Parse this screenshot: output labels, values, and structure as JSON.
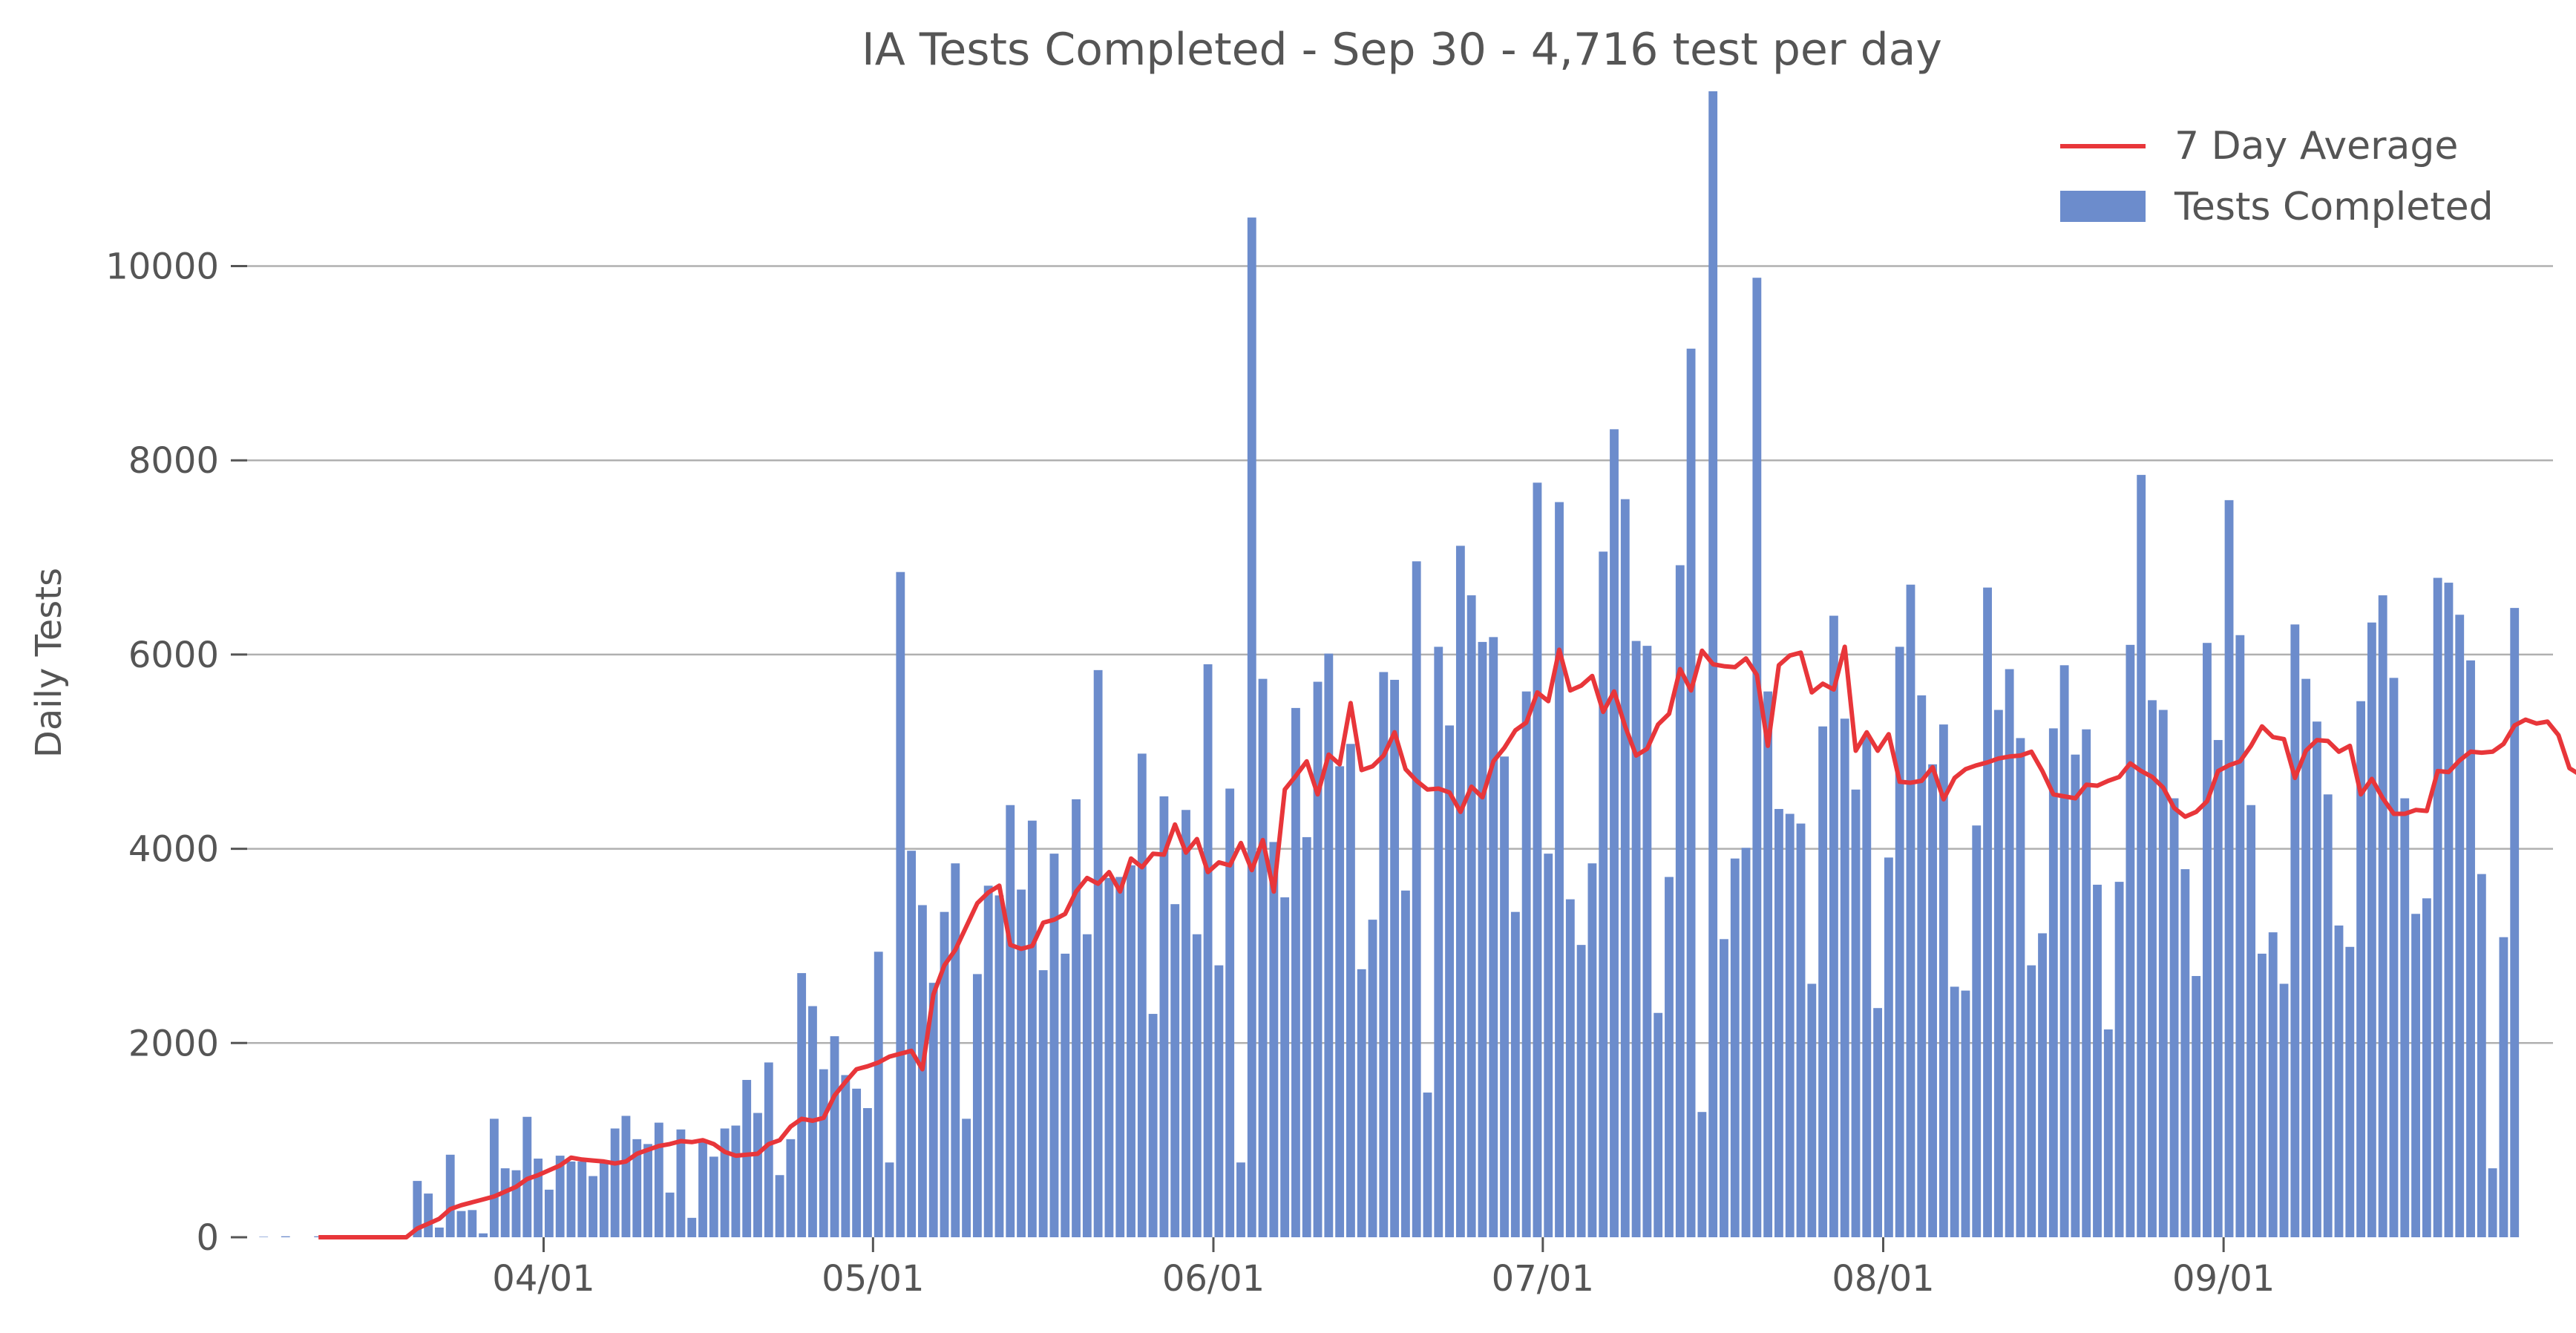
{
  "chart_data": {
    "type": "bar",
    "title": "IA Tests Completed - Sep 30 - 4,716 test per day",
    "ylabel": "Daily Tests",
    "xlabel": "",
    "ylim": [
      0,
      11800
    ],
    "yticks": [
      0,
      2000,
      4000,
      6000,
      8000,
      10000
    ],
    "xticks": [
      {
        "date": "2020-04-01",
        "label": "04/01"
      },
      {
        "date": "2020-05-01",
        "label": "05/01"
      },
      {
        "date": "2020-06-01",
        "label": "06/01"
      },
      {
        "date": "2020-07-01",
        "label": "07/01"
      },
      {
        "date": "2020-08-01",
        "label": "08/01"
      },
      {
        "date": "2020-09-01",
        "label": "09/01"
      }
    ],
    "grid": "horizontal",
    "legend": {
      "position": "top-right",
      "entries": [
        {
          "label": "7 Day Average",
          "kind": "line",
          "color": "#e8363a"
        },
        {
          "label": "Tests Completed",
          "kind": "bar",
          "color": "#6c8ccc"
        }
      ]
    },
    "x_start": "2020-03-05",
    "x_end": "2020-09-30",
    "series": [
      {
        "name": "Tests Completed",
        "kind": "bar",
        "color": "#6c8ccc",
        "values": [
          0,
          5,
          0,
          10,
          0,
          0,
          10,
          0,
          0,
          0,
          0,
          0,
          0,
          0,
          0,
          580,
          450,
          100,
          850,
          270,
          280,
          40,
          1220,
          710,
          690,
          1240,
          810,
          490,
          840,
          780,
          780,
          630,
          780,
          1120,
          1250,
          1010,
          960,
          1180,
          460,
          1110,
          200,
          980,
          830,
          1120,
          1150,
          1620,
          1280,
          1800,
          640,
          1010,
          2720,
          2380,
          1730,
          2070,
          1670,
          1530,
          1330,
          2940,
          770,
          6850,
          3980,
          3420,
          2620,
          3350,
          3850,
          1220,
          2710,
          3620,
          3520,
          4450,
          3580,
          4290,
          2750,
          3950,
          2920,
          4510,
          3120,
          5840,
          3700,
          3710,
          3830,
          4980,
          2300,
          4540,
          3430,
          4400,
          3120,
          5900,
          2800,
          4620,
          770,
          10500,
          5750,
          4070,
          3500,
          5450,
          4120,
          5720,
          6010,
          4850,
          5080,
          2760,
          3270,
          5820,
          5740,
          3570,
          6960,
          1490,
          6080,
          5270,
          7120,
          6610,
          6130,
          6180,
          4950,
          3350,
          5620,
          7770,
          3950,
          7570,
          3480,
          3010,
          3850,
          7060,
          8320,
          7600,
          6140,
          6090,
          2310,
          3710,
          6920,
          9150,
          1290,
          11800,
          3070,
          3900,
          4010,
          9880,
          5620,
          4410,
          4360,
          4260,
          2610,
          5260,
          6400,
          5340,
          4610,
          5170,
          2360,
          3910,
          6080,
          6720,
          5580,
          4870,
          5280,
          2580,
          2540,
          4240,
          6690,
          5430,
          5850,
          5140,
          2800,
          3130,
          5240,
          5890,
          4970,
          5230,
          3630,
          2140,
          3660,
          6100,
          7850,
          5530,
          5430,
          4520,
          3790,
          2690,
          6120,
          5120,
          7590,
          6200,
          4450,
          2920,
          3140,
          2610,
          6310,
          5750,
          5310,
          4560,
          3210,
          2990,
          5520,
          6330,
          6610,
          5760,
          4520,
          3330,
          3490,
          6790,
          6740,
          6410,
          5940,
          3740,
          710,
          3090,
          6480
        ]
      },
      {
        "name": "7 Day Average",
        "kind": "line",
        "color": "#e8363a",
        "start_index": 6,
        "values": [
          0,
          0,
          0,
          0,
          0,
          0,
          0,
          0,
          0,
          90,
          140,
          190,
          290,
          330,
          360,
          390,
          420,
          470,
          520,
          600,
          640,
          690,
          740,
          820,
          800,
          790,
          780,
          760,
          780,
          860,
          900,
          940,
          960,
          990,
          980,
          1000,
          960,
          880,
          840,
          850,
          860,
          960,
          1000,
          1140,
          1220,
          1200,
          1230,
          1460,
          1600,
          1730,
          1760,
          1800,
          1860,
          1890,
          1920,
          1730,
          2500,
          2800,
          2960,
          3200,
          3440,
          3550,
          3620,
          3010,
          2970,
          3000,
          3240,
          3270,
          3330,
          3560,
          3700,
          3640,
          3760,
          3560,
          3900,
          3810,
          3950,
          3940,
          4250,
          3960,
          4100,
          3760,
          3860,
          3830,
          4060,
          3780,
          4090,
          3560,
          4610,
          4750,
          4900,
          4560,
          4970,
          4870,
          5500,
          4810,
          4850,
          4960,
          5200,
          4820,
          4700,
          4610,
          4620,
          4580,
          4380,
          4640,
          4530,
          4900,
          5040,
          5220,
          5300,
          5610,
          5520,
          6050,
          5630,
          5680,
          5780,
          5410,
          5620,
          5260,
          4960,
          5030,
          5280,
          5390,
          5850,
          5630,
          6040,
          5900,
          5880,
          5870,
          5960,
          5790,
          5060,
          5890,
          5990,
          6020,
          5610,
          5700,
          5640,
          6080,
          5010,
          5200,
          5010,
          5180,
          4690,
          4680,
          4700,
          4840,
          4510,
          4730,
          4820,
          4860,
          4890,
          4930,
          4950,
          4960,
          5000,
          4800,
          4560,
          4540,
          4520,
          4660,
          4650,
          4700,
          4740,
          4880,
          4800,
          4740,
          4630,
          4420,
          4330,
          4380,
          4490,
          4800,
          4860,
          4900,
          5060,
          5260,
          5150,
          5130,
          4730,
          5010,
          5120,
          5110,
          5000,
          5060,
          4560,
          4720,
          4520,
          4360,
          4360,
          4400,
          4390,
          4800,
          4790,
          4910,
          5000,
          4990,
          5000,
          5080,
          5270,
          5330,
          5290,
          5310,
          5170,
          4830,
          4760,
          4740,
          4716
        ]
      }
    ]
  }
}
